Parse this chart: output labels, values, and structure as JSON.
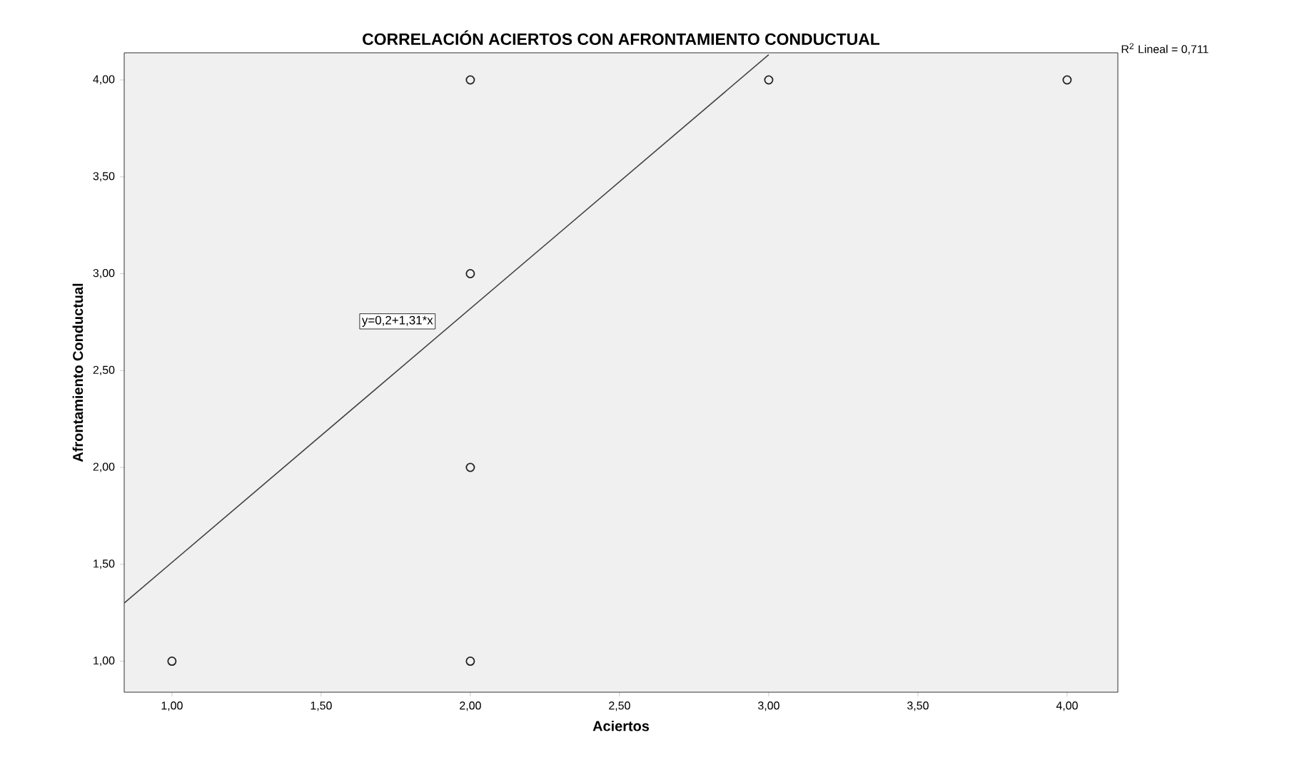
{
  "chart_data": {
    "type": "scatter",
    "title": "CORRELACIÓN ACIERTOS CON AFRONTAMIENTO CONDUCTUAL",
    "xlabel": "Aciertos",
    "ylabel": "Afrontamiento Conductual",
    "series": [
      {
        "color": "#222222",
        "marker": "circle",
        "x": [
          1,
          2,
          2,
          2,
          2,
          3,
          4
        ],
        "values": [
          1,
          1,
          2,
          3,
          4,
          4,
          4
        ]
      },
      {
        "type": "line",
        "color": "#444444",
        "marker": "none",
        "x": [
          0.84,
          3.0
        ],
        "values": [
          1.3,
          4.13
        ]
      }
    ],
    "xlim": [
      0.84,
      4.17
    ],
    "ylim": [
      0.84,
      4.14
    ],
    "xticks": [
      {
        "value": 1,
        "label": "1,00"
      },
      {
        "value": 1.5,
        "label": "1,50"
      },
      {
        "value": 2,
        "label": "2,00"
      },
      {
        "value": 2.5,
        "label": "2,50"
      },
      {
        "value": 3,
        "label": "3,00"
      },
      {
        "value": 3.5,
        "label": "3,50"
      },
      {
        "value": 4,
        "label": "4,00"
      }
    ],
    "yticks": [
      {
        "value": 1,
        "label": "1,00"
      },
      {
        "value": 1.5,
        "label": "1,50"
      },
      {
        "value": 2,
        "label": "2,00"
      },
      {
        "value": 2.5,
        "label": "2,50"
      },
      {
        "value": 3,
        "label": "3,00"
      },
      {
        "value": 3.5,
        "label": "3,50"
      },
      {
        "value": 4,
        "label": "4,00"
      }
    ],
    "annotations": [
      "y=0,2+1,31*x",
      "R$^{2}$ Lineal = 0,711"
    ],
    "grid": false
  }
}
